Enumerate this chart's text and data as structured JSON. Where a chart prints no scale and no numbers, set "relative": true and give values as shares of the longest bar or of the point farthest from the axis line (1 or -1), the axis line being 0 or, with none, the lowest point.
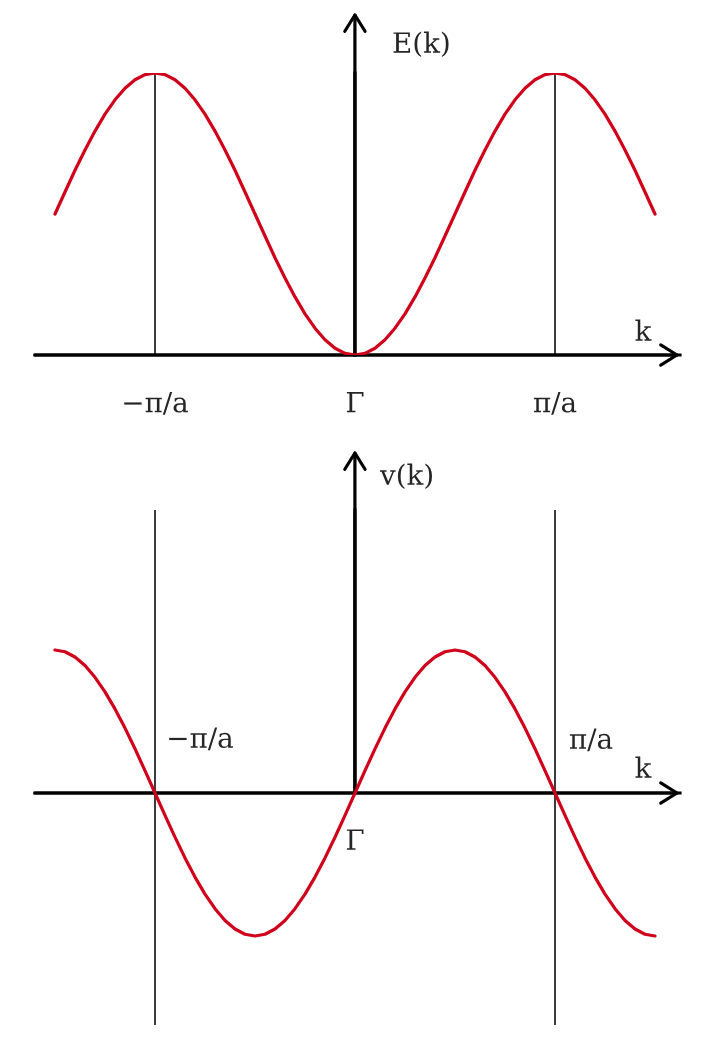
{
  "chart_data": [
    {
      "type": "line",
      "xlabel": "k",
      "ylabel": "E(k)",
      "relative": true,
      "color": "#d0021b",
      "categories": [
        null,
        null,
        null,
        null,
        null,
        null,
        null,
        null,
        null,
        null,
        "−π/a",
        null,
        null,
        null,
        null,
        null,
        null,
        null,
        null,
        null,
        null,
        null,
        null,
        null,
        null,
        null,
        null,
        null,
        null,
        null,
        "Γ",
        null,
        null,
        null,
        null,
        null,
        null,
        null,
        null,
        null,
        null,
        null,
        null,
        null,
        null,
        null,
        null,
        null,
        null,
        null,
        "π/a",
        null,
        null,
        null,
        null,
        null,
        null,
        null,
        null,
        null,
        null
      ],
      "values": [
        0.5,
        0.578,
        0.655,
        0.727,
        0.794,
        0.854,
        0.905,
        0.946,
        0.976,
        0.994,
        1,
        0.994,
        0.976,
        0.946,
        0.905,
        0.854,
        0.794,
        0.727,
        0.655,
        0.578,
        0.5,
        0.422,
        0.345,
        0.273,
        0.206,
        0.146,
        0.095,
        0.054,
        0.024,
        0.006,
        0,
        0.006,
        0.024,
        0.054,
        0.095,
        0.146,
        0.206,
        0.273,
        0.345,
        0.422,
        0.5,
        0.578,
        0.655,
        0.727,
        0.794,
        0.854,
        0.905,
        0.946,
        0.976,
        0.994,
        1,
        0.994,
        0.976,
        0.946,
        0.905,
        0.854,
        0.794,
        0.727,
        0.655,
        0.578,
        0.5
      ],
      "tick_labels": "x",
      "ref_lines": [
        {
          "axis": "x",
          "value": "−π/a",
          "color": "#000000"
        },
        {
          "axis": "x",
          "value": "π/a",
          "color": "#000000"
        }
      ]
    },
    {
      "type": "line",
      "xlabel": "k",
      "ylabel": "v(k)",
      "relative": true,
      "color": "#d0021b",
      "categories": [
        null,
        null,
        null,
        null,
        null,
        null,
        null,
        null,
        null,
        null,
        "−π/a",
        null,
        null,
        null,
        null,
        null,
        null,
        null,
        null,
        null,
        null,
        null,
        null,
        null,
        null,
        null,
        null,
        null,
        null,
        null,
        "Γ",
        null,
        null,
        null,
        null,
        null,
        null,
        null,
        null,
        null,
        null,
        null,
        null,
        null,
        null,
        null,
        null,
        null,
        null,
        null,
        "π/a",
        null,
        null,
        null,
        null,
        null,
        null,
        null,
        null,
        null,
        null
      ],
      "values": [
        1,
        0.988,
        0.951,
        0.891,
        0.809,
        0.707,
        0.588,
        0.454,
        0.309,
        0.156,
        0,
        -0.156,
        -0.309,
        -0.454,
        -0.588,
        -0.707,
        -0.809,
        -0.891,
        -0.951,
        -0.988,
        -1,
        -0.988,
        -0.951,
        -0.891,
        -0.809,
        -0.707,
        -0.588,
        -0.454,
        -0.309,
        -0.156,
        0,
        0.156,
        0.309,
        0.454,
        0.588,
        0.707,
        0.809,
        0.891,
        0.951,
        0.988,
        1,
        0.988,
        0.951,
        0.891,
        0.809,
        0.707,
        0.588,
        0.454,
        0.309,
        0.156,
        0,
        -0.156,
        -0.309,
        -0.454,
        -0.588,
        -0.707,
        -0.809,
        -0.891,
        -0.951,
        -0.988,
        -1
      ],
      "tick_labels": false,
      "ref_lines": [
        {
          "axis": "x",
          "value": "−π/a",
          "color": "#000000"
        },
        {
          "axis": "x",
          "value": "π/a",
          "color": "#000000"
        }
      ],
      "annotations": [
        {
          "text": "−π/a",
          "x": "−π/a",
          "y": 0
        },
        {
          "text": "Γ",
          "x": "Γ",
          "y": 0
        },
        {
          "text": "π/a",
          "x": "π/a",
          "y": 0
        }
      ]
    }
  ]
}
